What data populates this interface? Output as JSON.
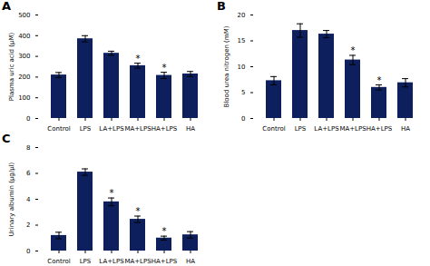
{
  "chart_data": [
    {
      "type": "bar",
      "title": "A",
      "categories": [
        "Control",
        "LPS",
        "LA+LPS",
        "MA+LPS",
        "HA+LPS",
        "HA"
      ],
      "values": [
        210,
        385,
        315,
        255,
        208,
        215
      ],
      "errors": [
        12,
        15,
        10,
        12,
        15,
        12
      ],
      "annotations": [
        null,
        null,
        null,
        "*",
        "*",
        null
      ],
      "color": "#0d1f5c",
      "ylabel": "Plasma uric acid (μM)",
      "ylim": [
        0,
        500
      ],
      "yticks": [
        0,
        100,
        200,
        300,
        400,
        500
      ]
    },
    {
      "type": "bar",
      "title": "B",
      "categories": [
        "Control",
        "LPS",
        "LA+LPS",
        "MA+LPS",
        "HA+LPS",
        "HA"
      ],
      "values": [
        7.3,
        17.0,
        16.3,
        11.3,
        6.0,
        6.9
      ],
      "errors": [
        0.8,
        1.3,
        0.7,
        0.9,
        0.5,
        0.8
      ],
      "annotations": [
        null,
        null,
        null,
        "*",
        "*",
        null
      ],
      "color": "#0d1f5c",
      "ylabel": "Blood urea nitrogen (mM)",
      "ylim": [
        0,
        20
      ],
      "yticks": [
        0,
        5,
        10,
        15,
        20
      ]
    },
    {
      "type": "bar",
      "title": "C",
      "categories": [
        "Control",
        "LPS",
        "LA+LPS",
        "MA+LPS",
        "HA+LPS",
        "HA"
      ],
      "values": [
        1.2,
        6.1,
        3.8,
        2.45,
        1.0,
        1.25
      ],
      "errors": [
        0.25,
        0.25,
        0.3,
        0.25,
        0.15,
        0.25
      ],
      "annotations": [
        null,
        null,
        "*",
        "*",
        "*",
        null
      ],
      "color": "#0d1f5c",
      "ylabel": "Urinary albumin (μg/μl)",
      "ylim": [
        0,
        8
      ],
      "yticks": [
        0,
        2,
        4,
        6,
        8
      ]
    }
  ]
}
